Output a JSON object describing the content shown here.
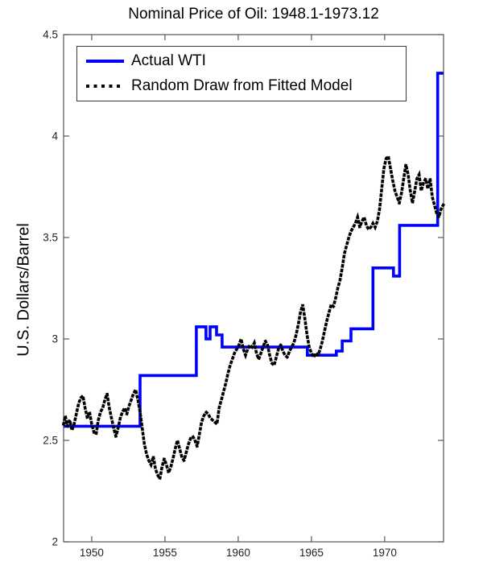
{
  "chart_data": {
    "type": "line",
    "title": "Nominal Price of Oil: 1948.1-1973.12",
    "xlabel": "",
    "ylabel": "U.S. Dollars/Barrel",
    "xlim": [
      1948.08,
      1974.02
    ],
    "ylim": [
      2,
      4.5
    ],
    "xticks": [
      1950,
      1955,
      1960,
      1965,
      1970
    ],
    "ytick_labels": [
      "2",
      "2.5",
      "3",
      "3.5",
      "4",
      "4.5"
    ],
    "yticks": [
      2,
      2.5,
      3,
      3.5,
      4,
      4.5
    ],
    "grid": false,
    "legend_position": "top-left",
    "axis_color": "#555555",
    "tick_label_color": "#222222",
    "series": [
      {
        "name": "Actual WTI",
        "draw": "step",
        "color": "#0000ff",
        "line_style": "solid",
        "line_width": 3.6,
        "points": [
          [
            1948.08,
            2.57
          ],
          [
            1953.3,
            2.82
          ],
          [
            1957.14,
            3.06
          ],
          [
            1957.8,
            3.0
          ],
          [
            1958.08,
            3.06
          ],
          [
            1958.52,
            3.02
          ],
          [
            1958.9,
            2.96
          ],
          [
            1964.72,
            2.92
          ],
          [
            1966.7,
            2.94
          ],
          [
            1967.1,
            2.99
          ],
          [
            1967.7,
            3.05
          ],
          [
            1969.2,
            3.35
          ],
          [
            1970.6,
            3.31
          ],
          [
            1971.02,
            3.56
          ],
          [
            1973.62,
            4.31
          ],
          [
            1974.02,
            4.31
          ]
        ]
      },
      {
        "name": "Random Draw from Fitted Model",
        "draw": "line",
        "color": "#000000",
        "line_style": "dotted",
        "line_width": 3.6,
        "points": [
          [
            1948.08,
            2.58
          ],
          [
            1948.2,
            2.62
          ],
          [
            1948.33,
            2.57
          ],
          [
            1948.5,
            2.6
          ],
          [
            1948.65,
            2.55
          ],
          [
            1948.8,
            2.58
          ],
          [
            1948.95,
            2.63
          ],
          [
            1949.1,
            2.68
          ],
          [
            1949.25,
            2.71
          ],
          [
            1949.4,
            2.72
          ],
          [
            1949.55,
            2.66
          ],
          [
            1949.7,
            2.61
          ],
          [
            1949.85,
            2.64
          ],
          [
            1950.0,
            2.58
          ],
          [
            1950.15,
            2.54
          ],
          [
            1950.3,
            2.53
          ],
          [
            1950.45,
            2.6
          ],
          [
            1950.6,
            2.64
          ],
          [
            1950.75,
            2.66
          ],
          [
            1950.9,
            2.7
          ],
          [
            1951.05,
            2.73
          ],
          [
            1951.2,
            2.66
          ],
          [
            1951.35,
            2.61
          ],
          [
            1951.5,
            2.56
          ],
          [
            1951.65,
            2.52
          ],
          [
            1951.8,
            2.56
          ],
          [
            1951.95,
            2.61
          ],
          [
            1952.1,
            2.64
          ],
          [
            1952.25,
            2.66
          ],
          [
            1952.4,
            2.63
          ],
          [
            1952.55,
            2.67
          ],
          [
            1952.7,
            2.7
          ],
          [
            1952.85,
            2.73
          ],
          [
            1953.0,
            2.75
          ],
          [
            1953.15,
            2.7
          ],
          [
            1953.3,
            2.64
          ],
          [
            1953.45,
            2.56
          ],
          [
            1953.6,
            2.48
          ],
          [
            1953.75,
            2.43
          ],
          [
            1953.9,
            2.4
          ],
          [
            1954.05,
            2.38
          ],
          [
            1954.2,
            2.42
          ],
          [
            1954.35,
            2.36
          ],
          [
            1954.5,
            2.33
          ],
          [
            1954.65,
            2.31
          ],
          [
            1954.8,
            2.37
          ],
          [
            1954.95,
            2.41
          ],
          [
            1955.1,
            2.38
          ],
          [
            1955.25,
            2.34
          ],
          [
            1955.4,
            2.37
          ],
          [
            1955.55,
            2.41
          ],
          [
            1955.7,
            2.46
          ],
          [
            1955.85,
            2.5
          ],
          [
            1956.0,
            2.46
          ],
          [
            1956.15,
            2.42
          ],
          [
            1956.3,
            2.4
          ],
          [
            1956.45,
            2.44
          ],
          [
            1956.6,
            2.48
          ],
          [
            1956.75,
            2.51
          ],
          [
            1956.9,
            2.52
          ],
          [
            1957.05,
            2.5
          ],
          [
            1957.2,
            2.47
          ],
          [
            1957.35,
            2.53
          ],
          [
            1957.5,
            2.59
          ],
          [
            1957.65,
            2.62
          ],
          [
            1957.8,
            2.64
          ],
          [
            1957.95,
            2.63
          ],
          [
            1958.1,
            2.61
          ],
          [
            1958.25,
            2.6
          ],
          [
            1958.4,
            2.59
          ],
          [
            1958.55,
            2.58
          ],
          [
            1958.7,
            2.66
          ],
          [
            1958.85,
            2.7
          ],
          [
            1959.0,
            2.74
          ],
          [
            1959.15,
            2.78
          ],
          [
            1959.3,
            2.83
          ],
          [
            1959.45,
            2.87
          ],
          [
            1959.6,
            2.9
          ],
          [
            1959.75,
            2.93
          ],
          [
            1959.9,
            2.95
          ],
          [
            1960.05,
            2.97
          ],
          [
            1960.2,
            3.0
          ],
          [
            1960.35,
            2.95
          ],
          [
            1960.5,
            2.92
          ],
          [
            1960.65,
            2.95
          ],
          [
            1960.8,
            2.97
          ],
          [
            1960.95,
            2.96
          ],
          [
            1961.1,
            2.98
          ],
          [
            1961.25,
            2.93
          ],
          [
            1961.4,
            2.9
          ],
          [
            1961.55,
            2.93
          ],
          [
            1961.7,
            2.96
          ],
          [
            1961.85,
            2.99
          ],
          [
            1962.0,
            2.97
          ],
          [
            1962.15,
            2.92
          ],
          [
            1962.3,
            2.88
          ],
          [
            1962.45,
            2.87
          ],
          [
            1962.6,
            2.91
          ],
          [
            1962.75,
            2.95
          ],
          [
            1962.9,
            2.97
          ],
          [
            1963.05,
            2.94
          ],
          [
            1963.2,
            2.92
          ],
          [
            1963.35,
            2.91
          ],
          [
            1963.5,
            2.94
          ],
          [
            1963.65,
            2.96
          ],
          [
            1963.8,
            2.98
          ],
          [
            1963.95,
            3.02
          ],
          [
            1964.1,
            3.07
          ],
          [
            1964.25,
            3.13
          ],
          [
            1964.4,
            3.17
          ],
          [
            1964.55,
            3.1
          ],
          [
            1964.7,
            3.02
          ],
          [
            1964.85,
            2.96
          ],
          [
            1965.0,
            2.93
          ],
          [
            1965.15,
            2.91
          ],
          [
            1965.3,
            2.93
          ],
          [
            1965.45,
            2.92
          ],
          [
            1965.6,
            2.95
          ],
          [
            1965.75,
            2.99
          ],
          [
            1965.9,
            3.04
          ],
          [
            1966.05,
            3.09
          ],
          [
            1966.2,
            3.13
          ],
          [
            1966.35,
            3.17
          ],
          [
            1966.5,
            3.16
          ],
          [
            1966.65,
            3.2
          ],
          [
            1966.8,
            3.25
          ],
          [
            1966.95,
            3.29
          ],
          [
            1967.1,
            3.35
          ],
          [
            1967.25,
            3.42
          ],
          [
            1967.4,
            3.46
          ],
          [
            1967.55,
            3.5
          ],
          [
            1967.7,
            3.53
          ],
          [
            1967.85,
            3.55
          ],
          [
            1968.0,
            3.57
          ],
          [
            1968.15,
            3.6
          ],
          [
            1968.3,
            3.55
          ],
          [
            1968.45,
            3.58
          ],
          [
            1968.6,
            3.6
          ],
          [
            1968.75,
            3.56
          ],
          [
            1968.9,
            3.54
          ],
          [
            1969.05,
            3.55
          ],
          [
            1969.2,
            3.57
          ],
          [
            1969.35,
            3.55
          ],
          [
            1969.5,
            3.58
          ],
          [
            1969.65,
            3.64
          ],
          [
            1969.8,
            3.74
          ],
          [
            1969.95,
            3.84
          ],
          [
            1970.1,
            3.89
          ],
          [
            1970.25,
            3.9
          ],
          [
            1970.4,
            3.84
          ],
          [
            1970.55,
            3.78
          ],
          [
            1970.7,
            3.73
          ],
          [
            1970.85,
            3.7
          ],
          [
            1971.0,
            3.67
          ],
          [
            1971.15,
            3.72
          ],
          [
            1971.3,
            3.79
          ],
          [
            1971.45,
            3.86
          ],
          [
            1971.6,
            3.81
          ],
          [
            1971.75,
            3.73
          ],
          [
            1971.9,
            3.67
          ],
          [
            1972.05,
            3.73
          ],
          [
            1972.2,
            3.79
          ],
          [
            1972.35,
            3.81
          ],
          [
            1972.5,
            3.73
          ],
          [
            1972.65,
            3.77
          ],
          [
            1972.8,
            3.79
          ],
          [
            1972.95,
            3.74
          ],
          [
            1973.1,
            3.79
          ],
          [
            1973.25,
            3.7
          ],
          [
            1973.4,
            3.66
          ],
          [
            1973.55,
            3.62
          ],
          [
            1973.7,
            3.6
          ],
          [
            1973.85,
            3.64
          ],
          [
            1974.0,
            3.66
          ]
        ]
      }
    ]
  }
}
